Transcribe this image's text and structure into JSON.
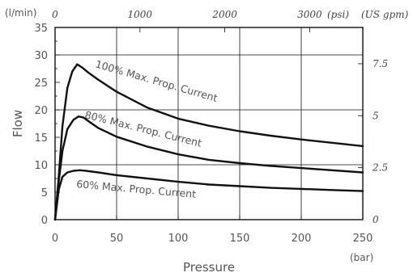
{
  "chart_data": {
    "type": "line",
    "xlabel": "Pressure",
    "ylabel": "Flow",
    "x_unit": "(bar)",
    "y_unit": "(l/min)",
    "top_unit_psi": "(psi)",
    "right_unit": "(US gpm)",
    "xlim": [
      0,
      250
    ],
    "ylim": [
      0,
      35
    ],
    "x_ticks": [
      "0",
      "50",
      "100",
      "150",
      "200",
      "250"
    ],
    "y_ticks": [
      "0",
      "5",
      "10",
      "15",
      "20",
      "25",
      "30",
      "35"
    ],
    "top_ticks": [
      "0",
      "1000",
      "2000",
      "3000"
    ],
    "right_ticks": [
      "0",
      "2.5",
      "5",
      "7.5"
    ],
    "grid": true,
    "series": [
      {
        "name": "100% Max. Prop. Current",
        "x": [
          0,
          3,
          6,
          10,
          14,
          18,
          22,
          27,
          35,
          50,
          75,
          100,
          125,
          150,
          175,
          200,
          225,
          250
        ],
        "y": [
          0,
          8,
          17,
          24,
          27,
          28.3,
          27.7,
          26.8,
          25.5,
          23.3,
          20.4,
          18.4,
          17.1,
          16.1,
          15.3,
          14.6,
          14.0,
          13.4
        ]
      },
      {
        "name": "80% Max. Prop. Current",
        "x": [
          0,
          3,
          6,
          10,
          15,
          19,
          23,
          28,
          35,
          50,
          75,
          100,
          125,
          150,
          175,
          200,
          225,
          250
        ],
        "y": [
          0,
          7,
          12.5,
          16.5,
          18.2,
          18.8,
          18.6,
          17.8,
          16.7,
          15.1,
          13.3,
          11.9,
          10.9,
          10.3,
          9.8,
          9.4,
          9.0,
          8.6
        ]
      },
      {
        "name": "60% Max. Prop. Current",
        "x": [
          0,
          3,
          6,
          10,
          15,
          20,
          25,
          35,
          50,
          75,
          100,
          125,
          150,
          175,
          200,
          225,
          250
        ],
        "y": [
          0,
          5.5,
          7.8,
          8.6,
          8.9,
          9.0,
          8.9,
          8.6,
          8.1,
          7.5,
          6.9,
          6.4,
          6.1,
          5.8,
          5.6,
          5.4,
          5.2
        ]
      }
    ]
  }
}
